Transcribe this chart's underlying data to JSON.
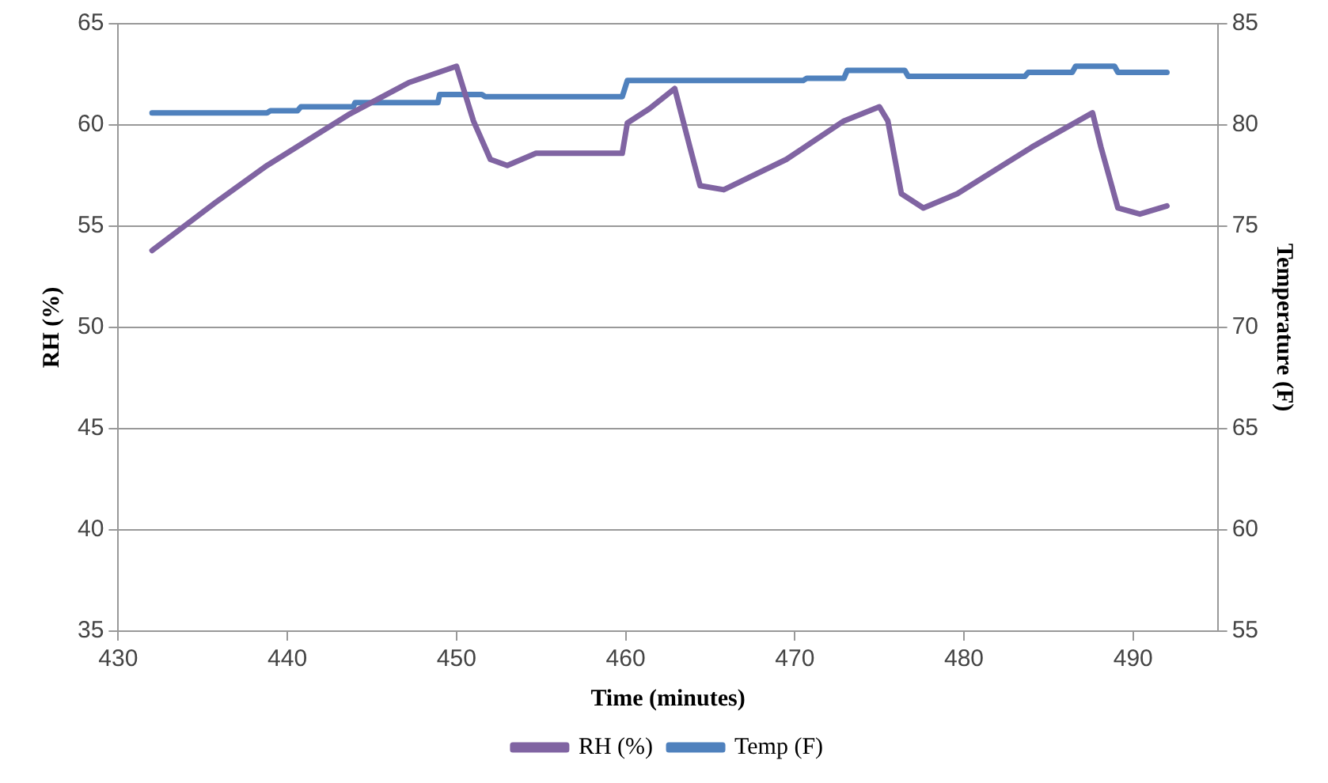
{
  "chart_data": {
    "type": "line",
    "xlabel": "Time (minutes)",
    "ylabel": "RH (%)",
    "y2label": "Temperature (F)",
    "xlim": [
      430,
      495
    ],
    "xticks": [
      430,
      440,
      450,
      460,
      470,
      480,
      490
    ],
    "ylim": [
      35,
      65
    ],
    "yticks": [
      35,
      40,
      45,
      50,
      55,
      60,
      65
    ],
    "y2lim": [
      55,
      85
    ],
    "y2ticks": [
      55,
      60,
      65,
      70,
      75,
      80,
      85
    ],
    "grid": "y",
    "legend": "bottom",
    "marker": "none",
    "line_style": "solid",
    "series": [
      {
        "name": "RH (%)",
        "color": "#8064a2",
        "x": [
          432,
          435.8,
          438.8,
          443.6,
          447.2,
          450,
          451,
          452,
          453,
          454.7,
          459.8,
          460.1,
          461.4,
          462.9,
          463.8,
          464.4,
          465.8,
          469.5,
          472.9,
          475,
          475.5,
          476.3,
          477.6,
          479.6,
          484,
          487.6,
          488.1,
          489.1,
          490.4,
          492
        ],
        "values": [
          53.8,
          56.2,
          58,
          60.5,
          62.1,
          62.9,
          60.2,
          58.3,
          58,
          58.6,
          58.6,
          60.1,
          60.8,
          61.8,
          58.9,
          57,
          56.8,
          58.3,
          60.2,
          60.9,
          60.2,
          56.6,
          55.9,
          56.6,
          58.9,
          60.6,
          58.9,
          55.9,
          55.6,
          56
        ]
      },
      {
        "name": "Temp (F)",
        "color": "#4f81bd",
        "axis": "y2",
        "x": [
          432,
          438.8,
          439,
          440.6,
          440.8,
          443.9,
          444,
          448.9,
          449,
          451.5,
          451.7,
          459.8,
          460.1,
          470.5,
          470.7,
          472.9,
          473.1,
          476.5,
          476.7,
          483.6,
          483.8,
          486.4,
          486.6,
          488.9,
          489.1,
          492
        ],
        "values": [
          80.6,
          80.6,
          80.7,
          80.7,
          80.9,
          80.9,
          81.1,
          81.1,
          81.5,
          81.5,
          81.4,
          81.4,
          82.2,
          82.2,
          82.3,
          82.3,
          82.7,
          82.7,
          82.4,
          82.4,
          82.6,
          82.6,
          82.9,
          82.9,
          82.6,
          82.6
        ]
      }
    ]
  }
}
